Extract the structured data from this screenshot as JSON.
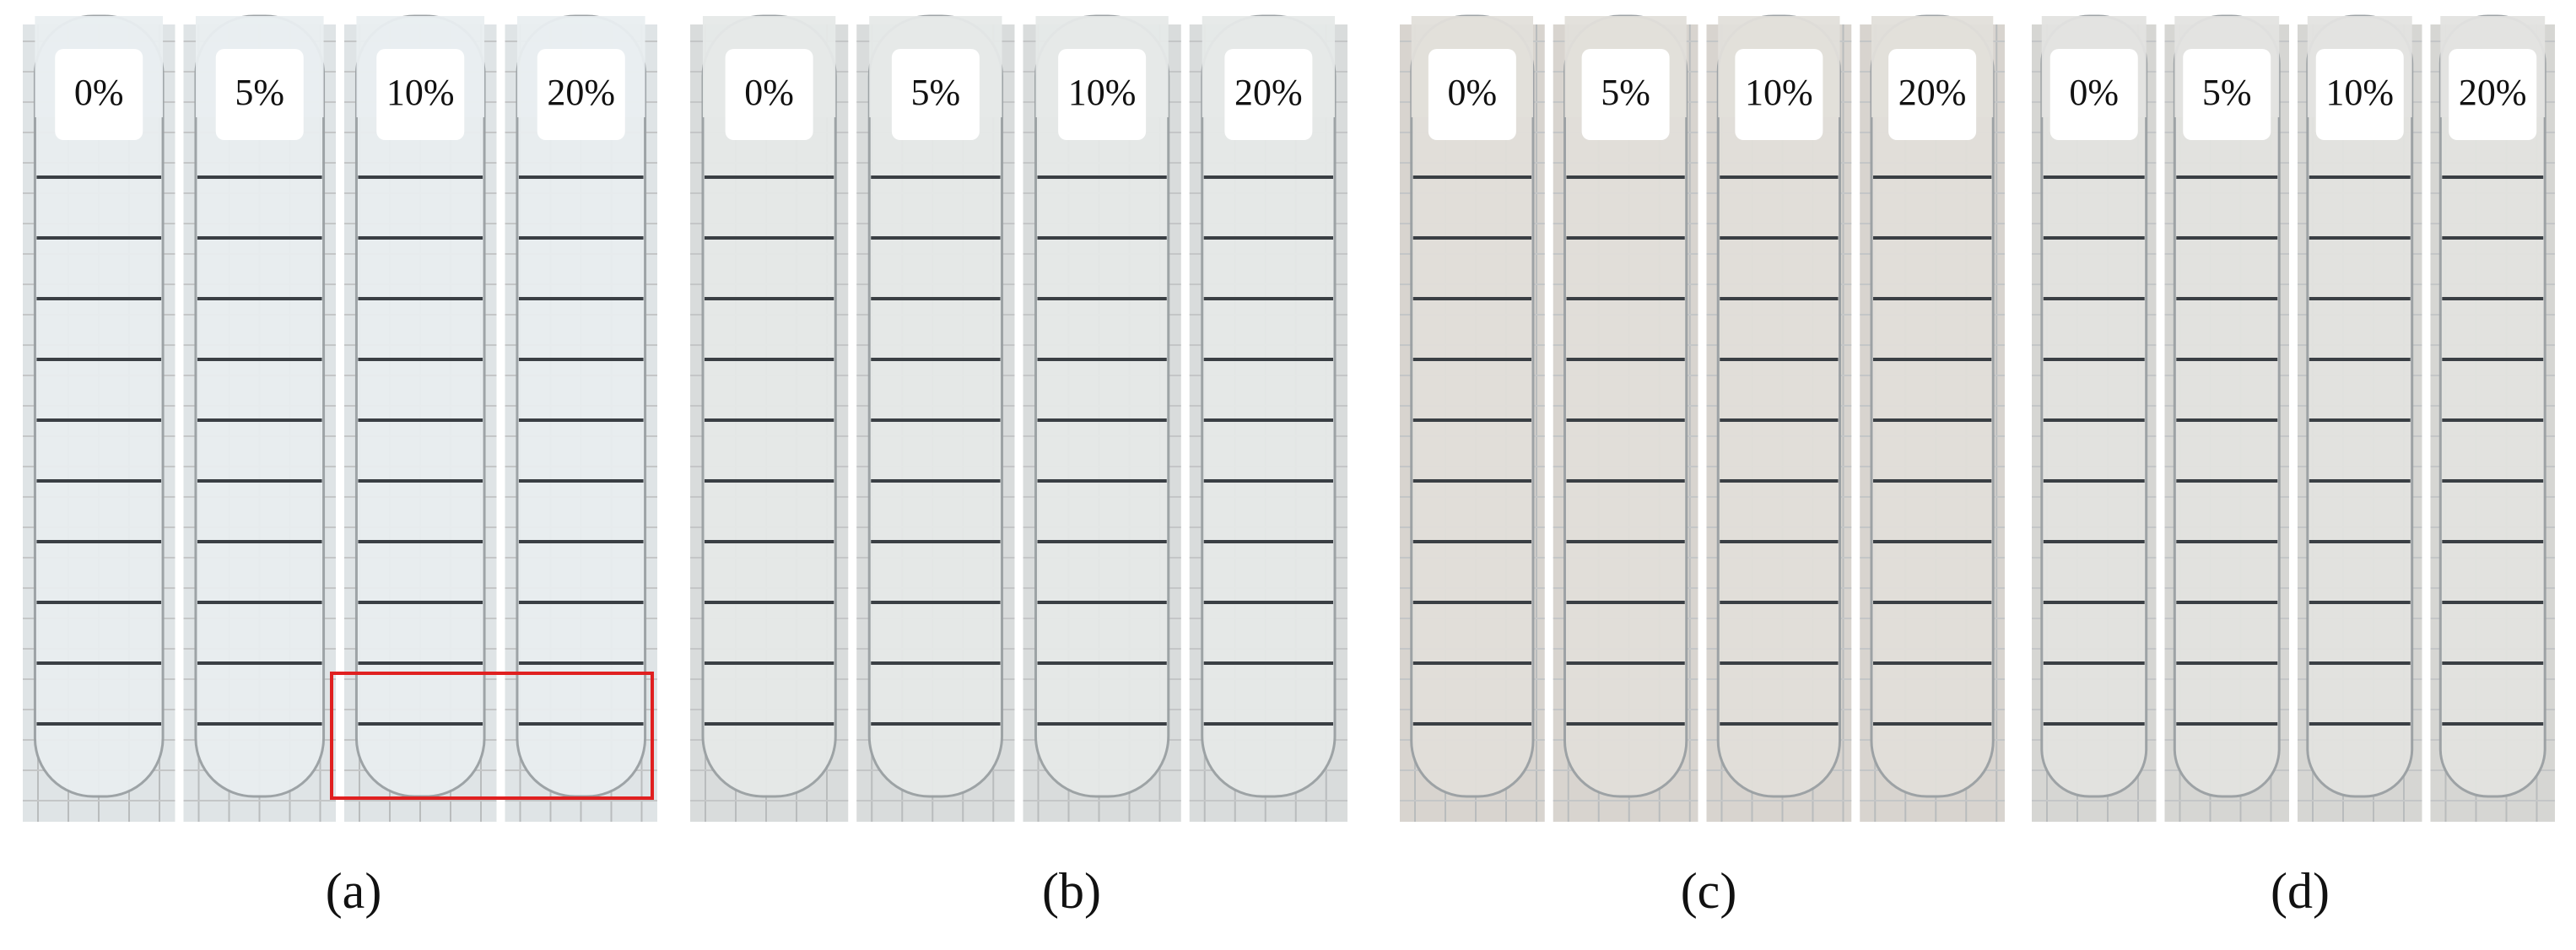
{
  "panels": [
    {
      "caption": "(a)",
      "tubes": [
        "0%",
        "5%",
        "10%",
        "20%"
      ]
    },
    {
      "caption": "(b)",
      "tubes": [
        "0%",
        "5%",
        "10%",
        "20%"
      ]
    },
    {
      "caption": "(c)",
      "tubes": [
        "0%",
        "5%",
        "10%",
        "20%"
      ]
    },
    {
      "caption": "(d)",
      "tubes": [
        "0%",
        "5%",
        "10%",
        "20%"
      ]
    }
  ]
}
